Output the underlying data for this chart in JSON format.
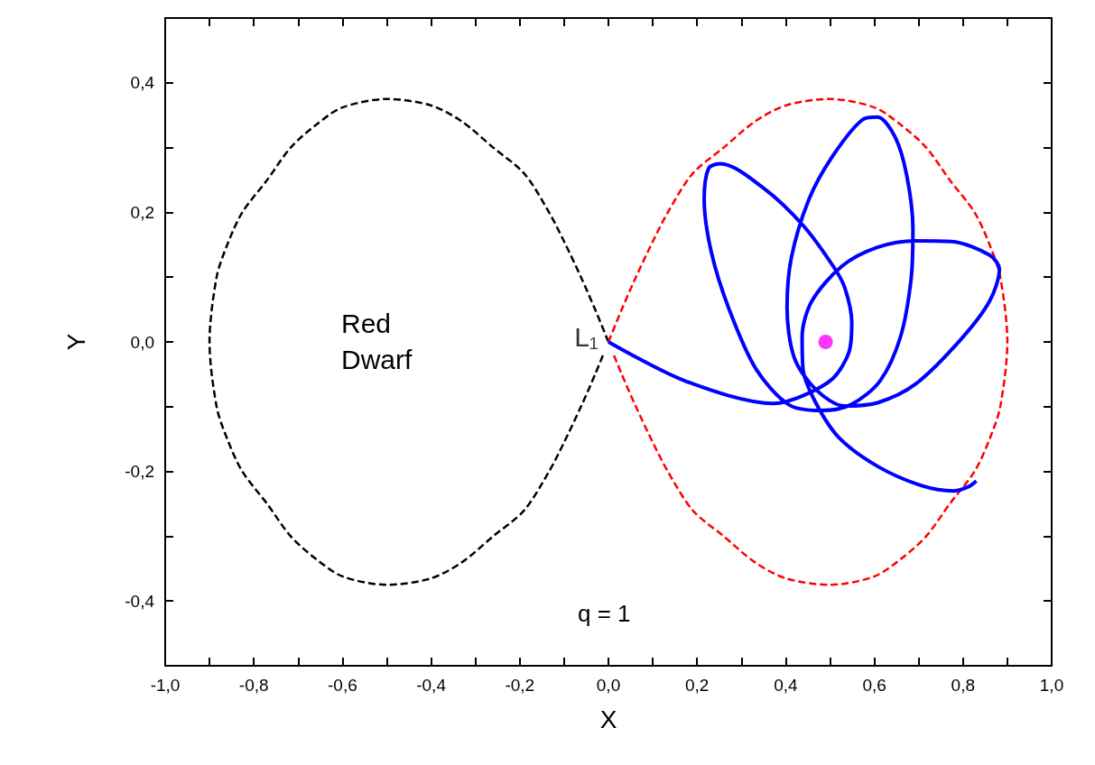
{
  "chart_data": {
    "type": "line",
    "xlabel": "X",
    "ylabel": "Y",
    "xlim": [
      -1.0,
      1.0
    ],
    "ylim": [
      -0.5,
      0.5
    ],
    "xticks": [
      {
        "value": -1.0,
        "label": "-1,0"
      },
      {
        "value": -0.9,
        "label": null
      },
      {
        "value": -0.8,
        "label": "-0,8"
      },
      {
        "value": -0.7,
        "label": null
      },
      {
        "value": -0.6,
        "label": "-0,6"
      },
      {
        "value": -0.5,
        "label": null
      },
      {
        "value": -0.4,
        "label": "-0,4"
      },
      {
        "value": -0.3,
        "label": null
      },
      {
        "value": -0.2,
        "label": "-0,2"
      },
      {
        "value": -0.1,
        "label": null
      },
      {
        "value": 0.0,
        "label": "0,0"
      },
      {
        "value": 0.1,
        "label": null
      },
      {
        "value": 0.2,
        "label": "0,2"
      },
      {
        "value": 0.3,
        "label": null
      },
      {
        "value": 0.4,
        "label": "0,4"
      },
      {
        "value": 0.5,
        "label": null
      },
      {
        "value": 0.6,
        "label": "0,6"
      },
      {
        "value": 0.7,
        "label": null
      },
      {
        "value": 0.8,
        "label": "0,8"
      },
      {
        "value": 0.9,
        "label": null
      },
      {
        "value": 1.0,
        "label": "1,0"
      }
    ],
    "yticks": [
      {
        "value": -0.5,
        "label": null
      },
      {
        "value": -0.4,
        "label": "-0,4"
      },
      {
        "value": -0.3,
        "label": null
      },
      {
        "value": -0.2,
        "label": "-0,2"
      },
      {
        "value": -0.1,
        "label": null
      },
      {
        "value": 0.0,
        "label": "0,0"
      },
      {
        "value": 0.1,
        "label": null
      },
      {
        "value": 0.2,
        "label": "0,2"
      },
      {
        "value": 0.3,
        "label": null
      },
      {
        "value": 0.4,
        "label": "0,4"
      },
      {
        "value": 0.5,
        "label": null
      }
    ],
    "grid": false,
    "series": [
      {
        "line_style": "dashed",
        "color": "#000000",
        "x": [
          0,
          -0.03,
          -0.062,
          -0.1,
          -0.134,
          -0.19,
          -0.26,
          -0.33,
          -0.4,
          -0.5,
          -0.6,
          -0.66,
          -0.717,
          -0.77,
          -0.826,
          -0.86,
          -0.884,
          -0.9,
          -0.884,
          -0.86,
          -0.826,
          -0.77,
          -0.717,
          -0.66,
          -0.6,
          -0.5,
          -0.4,
          -0.33,
          -0.26,
          -0.19,
          -0.134,
          -0.1,
          -0.062,
          -0.03,
          -0.012
        ],
        "values": [
          0,
          0.05,
          0.1,
          0.155,
          0.2,
          0.26,
          0.3,
          0.34,
          0.365,
          0.375,
          0.362,
          0.335,
          0.3,
          0.25,
          0.2,
          0.15,
          0.1,
          0,
          -0.1,
          -0.15,
          -0.2,
          -0.25,
          -0.3,
          -0.335,
          -0.362,
          -0.375,
          -0.365,
          -0.34,
          -0.3,
          -0.26,
          -0.2,
          -0.155,
          -0.1,
          -0.05,
          -0.02
        ]
      },
      {
        "line_style": "dashed",
        "color": "#ff0000",
        "x": [
          0,
          0.03,
          0.062,
          0.1,
          0.134,
          0.19,
          0.26,
          0.33,
          0.4,
          0.5,
          0.6,
          0.66,
          0.717,
          0.77,
          0.826,
          0.86,
          0.884,
          0.9,
          0.884,
          0.86,
          0.826,
          0.77,
          0.717,
          0.66,
          0.6,
          0.5,
          0.4,
          0.33,
          0.26,
          0.19,
          0.134,
          0.1,
          0.062,
          0.03,
          0.012
        ],
        "values": [
          0,
          0.05,
          0.1,
          0.155,
          0.2,
          0.26,
          0.3,
          0.34,
          0.365,
          0.375,
          0.362,
          0.335,
          0.3,
          0.25,
          0.2,
          0.15,
          0.1,
          0,
          -0.1,
          -0.15,
          -0.2,
          -0.25,
          -0.3,
          -0.335,
          -0.362,
          -0.375,
          -0.365,
          -0.34,
          -0.3,
          -0.26,
          -0.2,
          -0.155,
          -0.1,
          -0.05,
          -0.02
        ]
      },
      {
        "line_style": "solid",
        "color": "#0000ff",
        "x": [
          0,
          0.172,
          0.373,
          0.439,
          0.507,
          0.543,
          0.549,
          0.533,
          0.507,
          0.439,
          0.347,
          0.253,
          0.226,
          0.216,
          0.232,
          0.273,
          0.333,
          0.407,
          0.479,
          0.547,
          0.613,
          0.659,
          0.683,
          0.687,
          0.673,
          0.647,
          0.607,
          0.573,
          0.507,
          0.453,
          0.413,
          0.403,
          0.419,
          0.467,
          0.533,
          0.607,
          0.693,
          0.794,
          0.86,
          0.882,
          0.86,
          0.774,
          0.693,
          0.607,
          0.527,
          0.459,
          0.437,
          0.439,
          0.467,
          0.519,
          0.607,
          0.707,
          0.78,
          0.814,
          0.83
        ],
        "values": [
          0,
          -0.06,
          -0.095,
          -0.083,
          -0.056,
          -0.015,
          0.03,
          0.084,
          0.117,
          0.18,
          0.239,
          0.275,
          0.268,
          0.22,
          0.139,
          0.049,
          -0.042,
          -0.097,
          -0.106,
          -0.097,
          -0.06,
          0.008,
          0.098,
          0.175,
          0.257,
          0.316,
          0.347,
          0.343,
          0.288,
          0.221,
          0.131,
          0.053,
          -0.024,
          -0.073,
          -0.099,
          -0.094,
          -0.065,
          0.003,
          0.063,
          0.112,
          0.134,
          0.155,
          0.156,
          0.146,
          0.117,
          0.063,
          0.008,
          -0.042,
          -0.093,
          -0.147,
          -0.192,
          -0.222,
          -0.23,
          -0.223,
          -0.215
        ]
      },
      {
        "type": "scatter",
        "marker": "circle",
        "color": "#ff00ff",
        "x": [
          0.49
        ],
        "values": [
          0
        ]
      }
    ],
    "annotations": [
      "Red Dwarf",
      {
        "text": "L₁",
        "x": 0.0,
        "y": 0.0
      },
      "q = 1"
    ]
  }
}
